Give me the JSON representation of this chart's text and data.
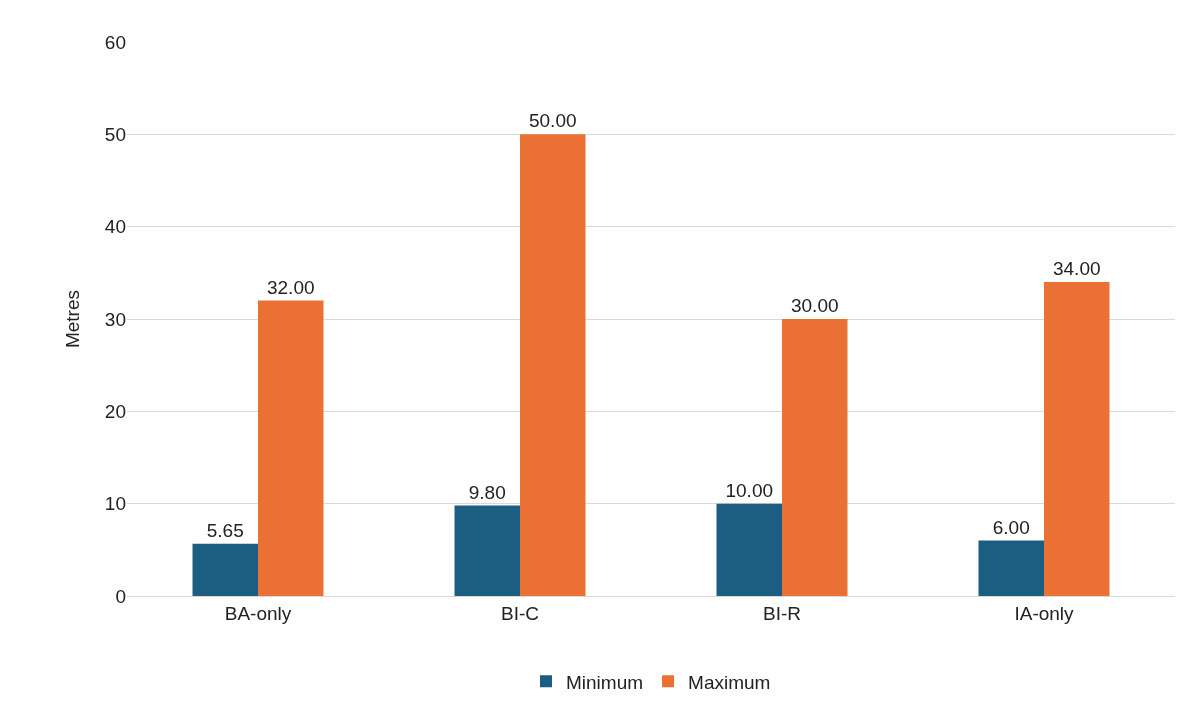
{
  "chart_data": {
    "type": "bar",
    "ylabel": "Metres",
    "categories": [
      "BA-only",
      "BI-C",
      "BI-R",
      "IA-only"
    ],
    "series": [
      {
        "name": "Minimum",
        "color": "#1b5e82",
        "values": [
          5.65,
          9.8,
          10,
          6
        ],
        "value_labels": [
          "5.65",
          "9.80",
          "10.00",
          "6.00"
        ]
      },
      {
        "name": "Maximum",
        "color": "#ea7034",
        "values": [
          32,
          50,
          30,
          34
        ],
        "value_labels": [
          "32.00",
          "50.00",
          "30.00",
          "34.00"
        ]
      }
    ],
    "ylim": [
      0,
      60
    ],
    "yticks": [
      0,
      10,
      20,
      30,
      40,
      50,
      60
    ],
    "grid": "y",
    "legend": "bottom"
  }
}
